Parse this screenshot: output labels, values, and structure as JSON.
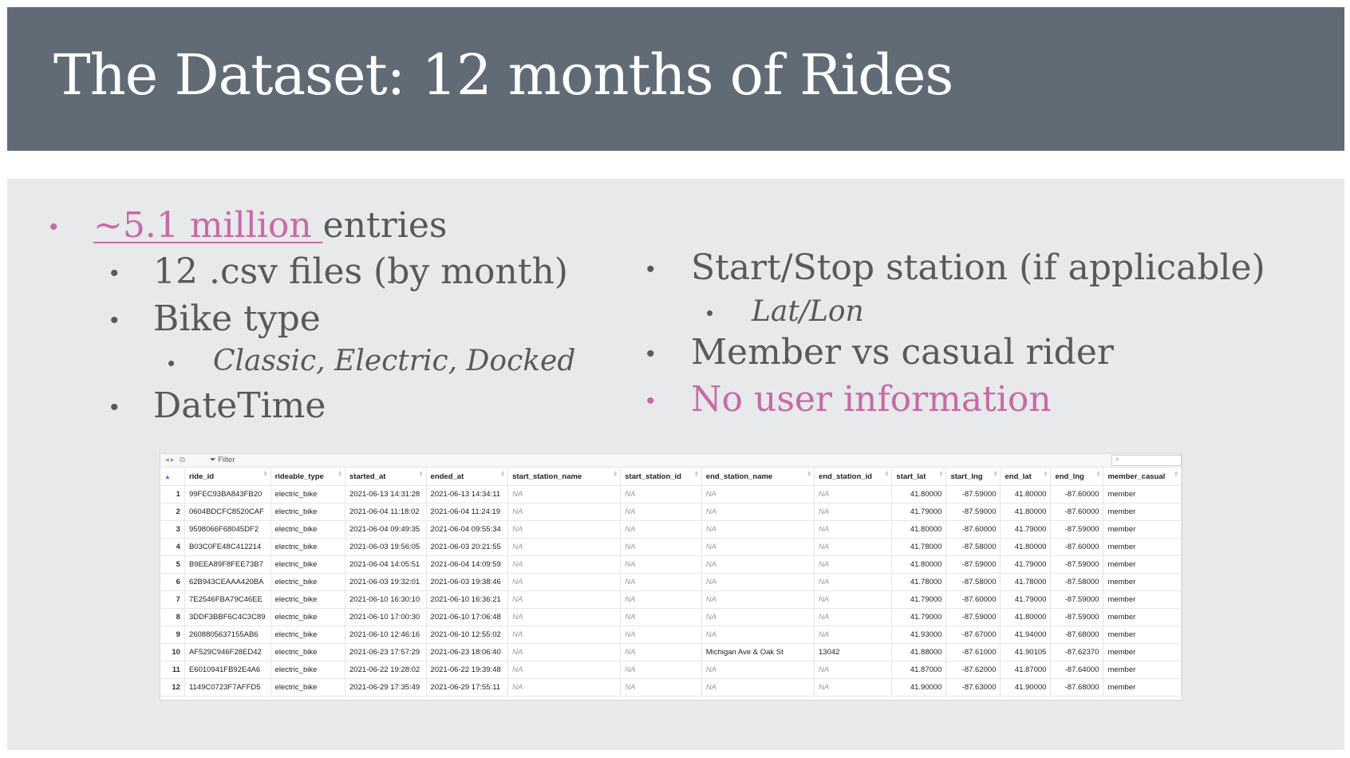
{
  "slide": {
    "title": "The Dataset: 12 months of Rides"
  },
  "bullets_left": {
    "b1_highlight": "~5.1 million ",
    "b1_rest": "entries",
    "b2": "12 .csv files (by month)",
    "b3": "Bike type",
    "b4": "Classic, Electric, Docked",
    "b5": "DateTime",
    "bullet_glyph": "•"
  },
  "bullets_right": {
    "b1": "Start/Stop station (if applicable)",
    "b2": "Lat/Lon",
    "b3": "Member vs casual rider",
    "b4": "No user information"
  },
  "colors": {
    "title_bg": "#616b76",
    "content_bg": "#e8e9ea",
    "text": "#595959",
    "accent_pink": "#c56aa9"
  },
  "table": {
    "toolbar": {
      "filter_label": "Filter",
      "search_placeholder": ""
    },
    "columns": [
      "ride_id",
      "rideable_type",
      "started_at",
      "ended_at",
      "start_station_name",
      "start_station_id",
      "end_station_name",
      "end_station_id",
      "start_lat",
      "start_lng",
      "end_lat",
      "end_lng",
      "member_casual"
    ],
    "rows": [
      [
        "1",
        "99FEC93BA843FB20",
        "electric_bike",
        "2021-06-13 14:31:28",
        "2021-06-13 14:34:11",
        "NA",
        "NA",
        "NA",
        "NA",
        "41.80000",
        "-87.59000",
        "41.80000",
        "-87.60000",
        "member"
      ],
      [
        "2",
        "0604BDCFC8520CAF",
        "electric_bike",
        "2021-06-04 11:18:02",
        "2021-06-04 11:24:19",
        "NA",
        "NA",
        "NA",
        "NA",
        "41.79000",
        "-87.59000",
        "41.80000",
        "-87.60000",
        "member"
      ],
      [
        "3",
        "9598066F68045DF2",
        "electric_bike",
        "2021-06-04 09:49:35",
        "2021-06-04 09:55:34",
        "NA",
        "NA",
        "NA",
        "NA",
        "41.80000",
        "-87.60000",
        "41.79000",
        "-87.59000",
        "member"
      ],
      [
        "4",
        "B03C0FE48C412214",
        "electric_bike",
        "2021-06-03 19:56:05",
        "2021-06-03 20:21:55",
        "NA",
        "NA",
        "NA",
        "NA",
        "41.78000",
        "-87.58000",
        "41.80000",
        "-87.60000",
        "member"
      ],
      [
        "5",
        "B9EEA89F8FEE73B7",
        "electric_bike",
        "2021-06-04 14:05:51",
        "2021-06-04 14:09:59",
        "NA",
        "NA",
        "NA",
        "NA",
        "41.80000",
        "-87.59000",
        "41.79000",
        "-87.59000",
        "member"
      ],
      [
        "6",
        "62B943CEAAA420BA",
        "electric_bike",
        "2021-06-03 19:32:01",
        "2021-06-03 19:38:46",
        "NA",
        "NA",
        "NA",
        "NA",
        "41.78000",
        "-87.58000",
        "41.78000",
        "-87.58000",
        "member"
      ],
      [
        "7",
        "7E2546FBA79C46EE",
        "electric_bike",
        "2021-06-10 16:30:10",
        "2021-06-10 16:36:21",
        "NA",
        "NA",
        "NA",
        "NA",
        "41.79000",
        "-87.60000",
        "41.79000",
        "-87.59000",
        "member"
      ],
      [
        "8",
        "3DDF3BBF6C4C3C89",
        "electric_bike",
        "2021-06-10 17:00:30",
        "2021-06-10 17:06:48",
        "NA",
        "NA",
        "NA",
        "NA",
        "41.79000",
        "-87.59000",
        "41.80000",
        "-87.59000",
        "member"
      ],
      [
        "9",
        "2608805637155AB6",
        "electric_bike",
        "2021-06-10 12:46:16",
        "2021-06-10 12:55:02",
        "NA",
        "NA",
        "NA",
        "NA",
        "41.93000",
        "-87.67000",
        "41.94000",
        "-87.68000",
        "member"
      ],
      [
        "10",
        "AF529C946F28ED42",
        "electric_bike",
        "2021-06-23 17:57:29",
        "2021-06-23 18:06:40",
        "NA",
        "NA",
        "Michigan Ave & Oak St",
        "13042",
        "41.88000",
        "-87.61000",
        "41.90105",
        "-87.62370",
        "member"
      ],
      [
        "11",
        "E6010941FB92E4A6",
        "electric_bike",
        "2021-06-22 19:28:02",
        "2021-06-22 19:39:48",
        "NA",
        "NA",
        "NA",
        "NA",
        "41.87000",
        "-87.62000",
        "41.87000",
        "-87.64000",
        "member"
      ],
      [
        "12",
        "1149C0723F7AFFD5",
        "electric_bike",
        "2021-06-29 17:35:49",
        "2021-06-29 17:55:11",
        "NA",
        "NA",
        "NA",
        "NA",
        "41.90000",
        "-87.63000",
        "41.90000",
        "-87.68000",
        "member"
      ]
    ]
  }
}
